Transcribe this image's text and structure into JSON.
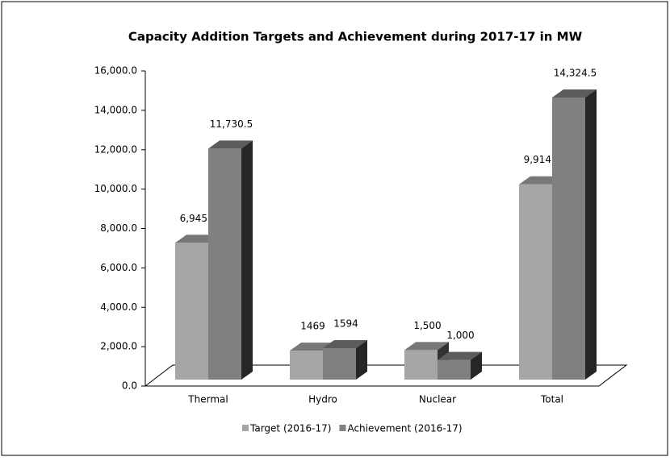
{
  "chart_data": {
    "type": "bar3d",
    "title": "Capacity Addition Targets and Achievement during 2017-17 in MW",
    "categories": [
      "Thermal",
      "Hydro",
      "Nuclear",
      "Total"
    ],
    "series": [
      {
        "name": "Target (2016-17)",
        "color": "#a6a6a6",
        "values": [
          6945,
          1469,
          1500,
          9914
        ],
        "value_labels": [
          "6,945.0",
          "1469",
          "1,500",
          "9,914.0"
        ]
      },
      {
        "name": "Achievement (2016-17)",
        "color": "#808080",
        "values": [
          11730.5,
          1594,
          1000,
          14324.5
        ],
        "value_labels": [
          "11,730.5",
          "1594",
          "1,000",
          "14,324.5"
        ]
      }
    ],
    "ylim": [
      0,
      16000
    ],
    "yticks": [
      {
        "value": 0,
        "label": "0.0"
      },
      {
        "value": 2000,
        "label": "2,000.0"
      },
      {
        "value": 4000,
        "label": "4,000.0"
      },
      {
        "value": 6000,
        "label": "6,000.0"
      },
      {
        "value": 8000,
        "label": "8,000.0"
      },
      {
        "value": 10000,
        "label": "10,000.0"
      },
      {
        "value": 12000,
        "label": "12,000.0"
      },
      {
        "value": 14000,
        "label": "14,000.0"
      },
      {
        "value": 16000,
        "label": "16,000.0"
      }
    ],
    "grid": false,
    "legend": "bottom"
  }
}
